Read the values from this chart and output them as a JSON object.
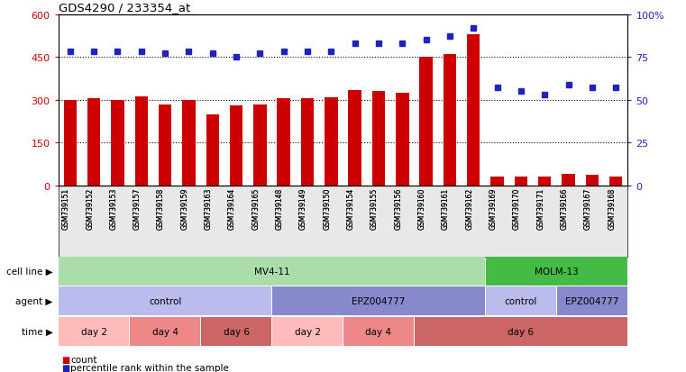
{
  "title": "GDS4290 / 233354_at",
  "samples": [
    "GSM739151",
    "GSM739152",
    "GSM739153",
    "GSM739157",
    "GSM739158",
    "GSM739159",
    "GSM739163",
    "GSM739164",
    "GSM739165",
    "GSM739148",
    "GSM739149",
    "GSM739150",
    "GSM739154",
    "GSM739155",
    "GSM739156",
    "GSM739160",
    "GSM739161",
    "GSM739162",
    "GSM739169",
    "GSM739170",
    "GSM739171",
    "GSM739166",
    "GSM739167",
    "GSM739168"
  ],
  "counts": [
    298,
    307,
    298,
    312,
    285,
    300,
    250,
    280,
    282,
    305,
    305,
    308,
    335,
    330,
    323,
    450,
    460,
    530,
    32,
    32,
    32,
    40,
    38,
    32
  ],
  "percentile": [
    78,
    78,
    78,
    78,
    77,
    78,
    77,
    75,
    77,
    78,
    78,
    78,
    83,
    83,
    83,
    85,
    87,
    92,
    57,
    55,
    53,
    59,
    57,
    57
  ],
  "ylim_left": [
    0,
    600
  ],
  "ylim_right": [
    0,
    100
  ],
  "yticks_left": [
    0,
    150,
    300,
    450,
    600
  ],
  "yticks_right": [
    0,
    25,
    50,
    75,
    100
  ],
  "bar_color": "#CC0000",
  "dot_color": "#2222BB",
  "cell_line_groups": [
    {
      "label": "MV4-11",
      "start": 0,
      "end": 17,
      "color": "#AADDAA"
    },
    {
      "label": "MOLM-13",
      "start": 18,
      "end": 23,
      "color": "#44BB44"
    }
  ],
  "agent_groups": [
    {
      "label": "control",
      "start": 0,
      "end": 8,
      "color": "#BBBBEE"
    },
    {
      "label": "EPZ004777",
      "start": 9,
      "end": 17,
      "color": "#8888CC"
    },
    {
      "label": "control",
      "start": 18,
      "end": 20,
      "color": "#BBBBEE"
    },
    {
      "label": "EPZ004777",
      "start": 21,
      "end": 23,
      "color": "#8888CC"
    }
  ],
  "time_groups": [
    {
      "label": "day 2",
      "start": 0,
      "end": 2,
      "color": "#FFBBBB"
    },
    {
      "label": "day 4",
      "start": 3,
      "end": 5,
      "color": "#EE8888"
    },
    {
      "label": "day 6",
      "start": 6,
      "end": 8,
      "color": "#CC6666"
    },
    {
      "label": "day 2",
      "start": 9,
      "end": 11,
      "color": "#FFBBBB"
    },
    {
      "label": "day 4",
      "start": 12,
      "end": 14,
      "color": "#EE8888"
    },
    {
      "label": "day 6",
      "start": 15,
      "end": 23,
      "color": "#CC6666"
    }
  ]
}
